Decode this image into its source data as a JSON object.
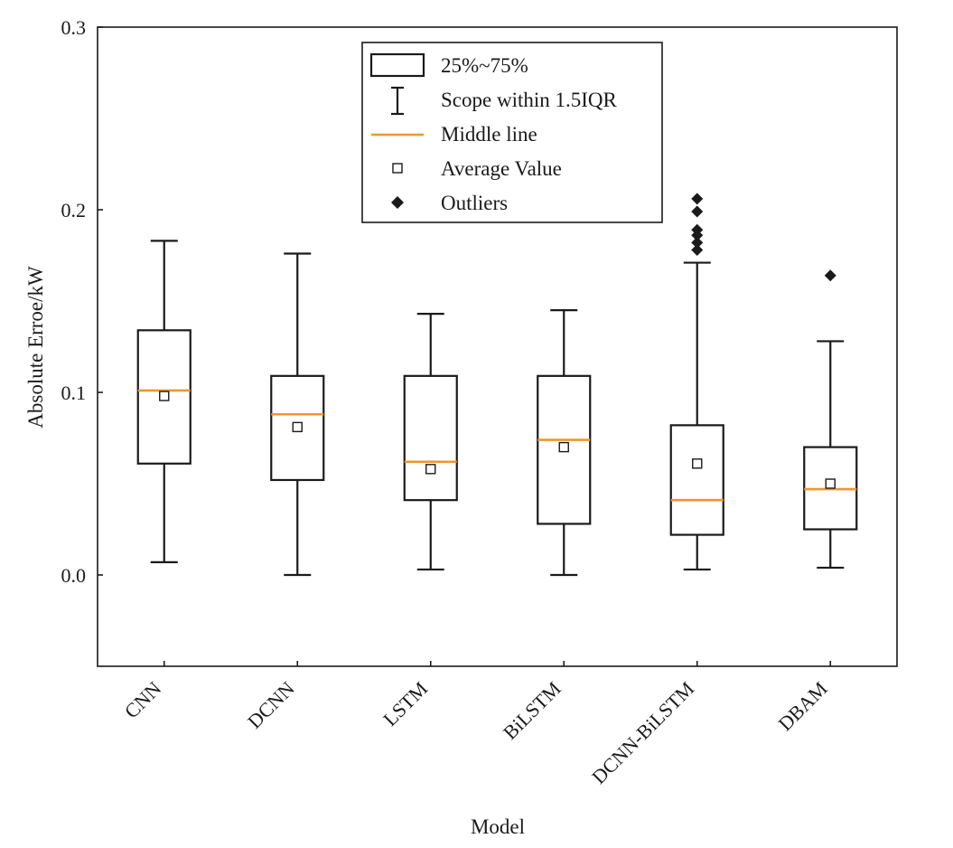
{
  "chart_data": {
    "type": "box",
    "xlabel": "Model",
    "ylabel": "Absolute Erroe/kW",
    "ylim": [
      -0.05,
      0.3
    ],
    "yticks": [
      "0.0",
      "0.1",
      "0.2",
      "0.3"
    ],
    "ytick_values": [
      0.0,
      0.1,
      0.2,
      0.3
    ],
    "categories": [
      "CNN",
      "DCNN",
      "LSTM",
      "BiLSTM",
      "DCNN-BiLSTM",
      "DBAM"
    ],
    "boxes": [
      {
        "name": "CNN",
        "whisker_low": 0.007,
        "q1": 0.061,
        "median": 0.101,
        "q3": 0.134,
        "whisker_high": 0.183,
        "mean": 0.098,
        "outliers": []
      },
      {
        "name": "DCNN",
        "whisker_low": 0.0,
        "q1": 0.052,
        "median": 0.088,
        "q3": 0.109,
        "whisker_high": 0.176,
        "mean": 0.081,
        "outliers": []
      },
      {
        "name": "LSTM",
        "whisker_low": 0.003,
        "q1": 0.041,
        "median": 0.062,
        "q3": 0.109,
        "whisker_high": 0.143,
        "mean": 0.058,
        "outliers": []
      },
      {
        "name": "BiLSTM",
        "whisker_low": 0.0,
        "q1": 0.028,
        "median": 0.074,
        "q3": 0.109,
        "whisker_high": 0.145,
        "mean": 0.07,
        "outliers": []
      },
      {
        "name": "DCNN-BiLSTM",
        "whisker_low": 0.003,
        "q1": 0.022,
        "median": 0.041,
        "q3": 0.082,
        "whisker_high": 0.171,
        "mean": 0.061,
        "outliers": [
          0.178,
          0.182,
          0.186,
          0.189,
          0.199,
          0.206
        ]
      },
      {
        "name": "DBAM",
        "whisker_low": 0.004,
        "q1": 0.025,
        "median": 0.047,
        "q3": 0.07,
        "whisker_high": 0.128,
        "mean": 0.05,
        "outliers": [
          0.164
        ]
      }
    ],
    "legend": {
      "position": "top-center",
      "entries": [
        "25%~75%",
        "Scope within 1.5IQR",
        "Middle line",
        "Average Value",
        "Outliers"
      ]
    },
    "colors": {
      "box": "#1a1a1a",
      "median": "#f0962a",
      "mean_marker": "#1a1a1a",
      "outlier": "#1a1a1a"
    }
  }
}
